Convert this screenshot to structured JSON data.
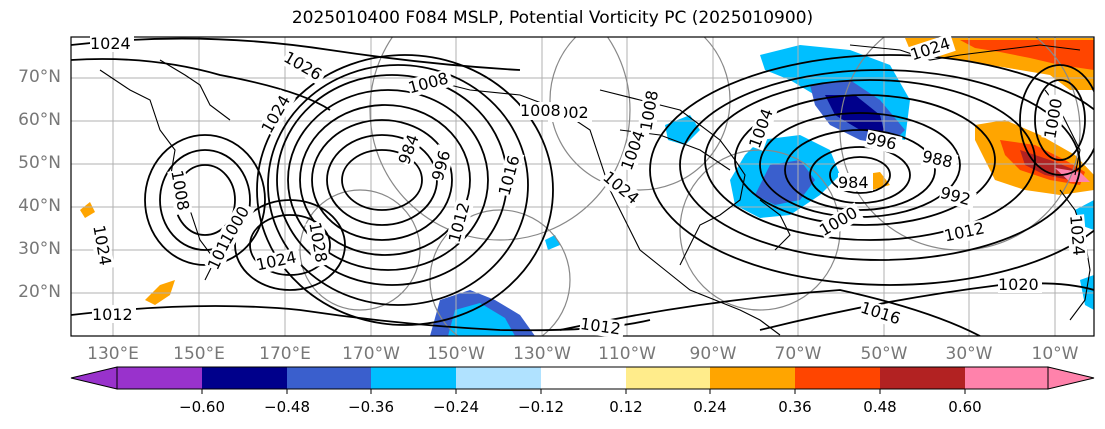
{
  "title": "2025010400 F084 MSLP, Potential Vorticity PC (2025010900)",
  "lat_labels": [
    "70°N",
    "60°N",
    "50°N",
    "40°N",
    "30°N",
    "20°N"
  ],
  "lon_labels": [
    "130°E",
    "150°E",
    "170°E",
    "170°W",
    "150°W",
    "130°W",
    "110°W",
    "90°W",
    "70°W",
    "50°W",
    "30°W",
    "10°W"
  ],
  "colorbar": {
    "ticks": [
      "−0.60",
      "−0.48",
      "−0.36",
      "−0.24",
      "−0.12",
      "0.12",
      "0.24",
      "0.36",
      "0.48",
      "0.60"
    ],
    "colors": [
      "#9932cc",
      "#00008b",
      "#3a5fcd",
      "#00bfff",
      "#b0e2ff",
      "#ffffff",
      "#ffec8b",
      "#ffa500",
      "#ff4500",
      "#b22222",
      "#ff82ab"
    ]
  },
  "isobar_labels": [
    "1024",
    "1026",
    "1024",
    "1008",
    "1002",
    "984",
    "996",
    "1016",
    "1012",
    "1024",
    "1028",
    "1012",
    "1008",
    "1000",
    "1024",
    "1012",
    "1016",
    "1020",
    "1008",
    "1012",
    "1024",
    "1024",
    "1024",
    "1004",
    "1008",
    "1004",
    "1000",
    "996",
    "988",
    "992",
    "984",
    "1012",
    "1000"
  ]
}
